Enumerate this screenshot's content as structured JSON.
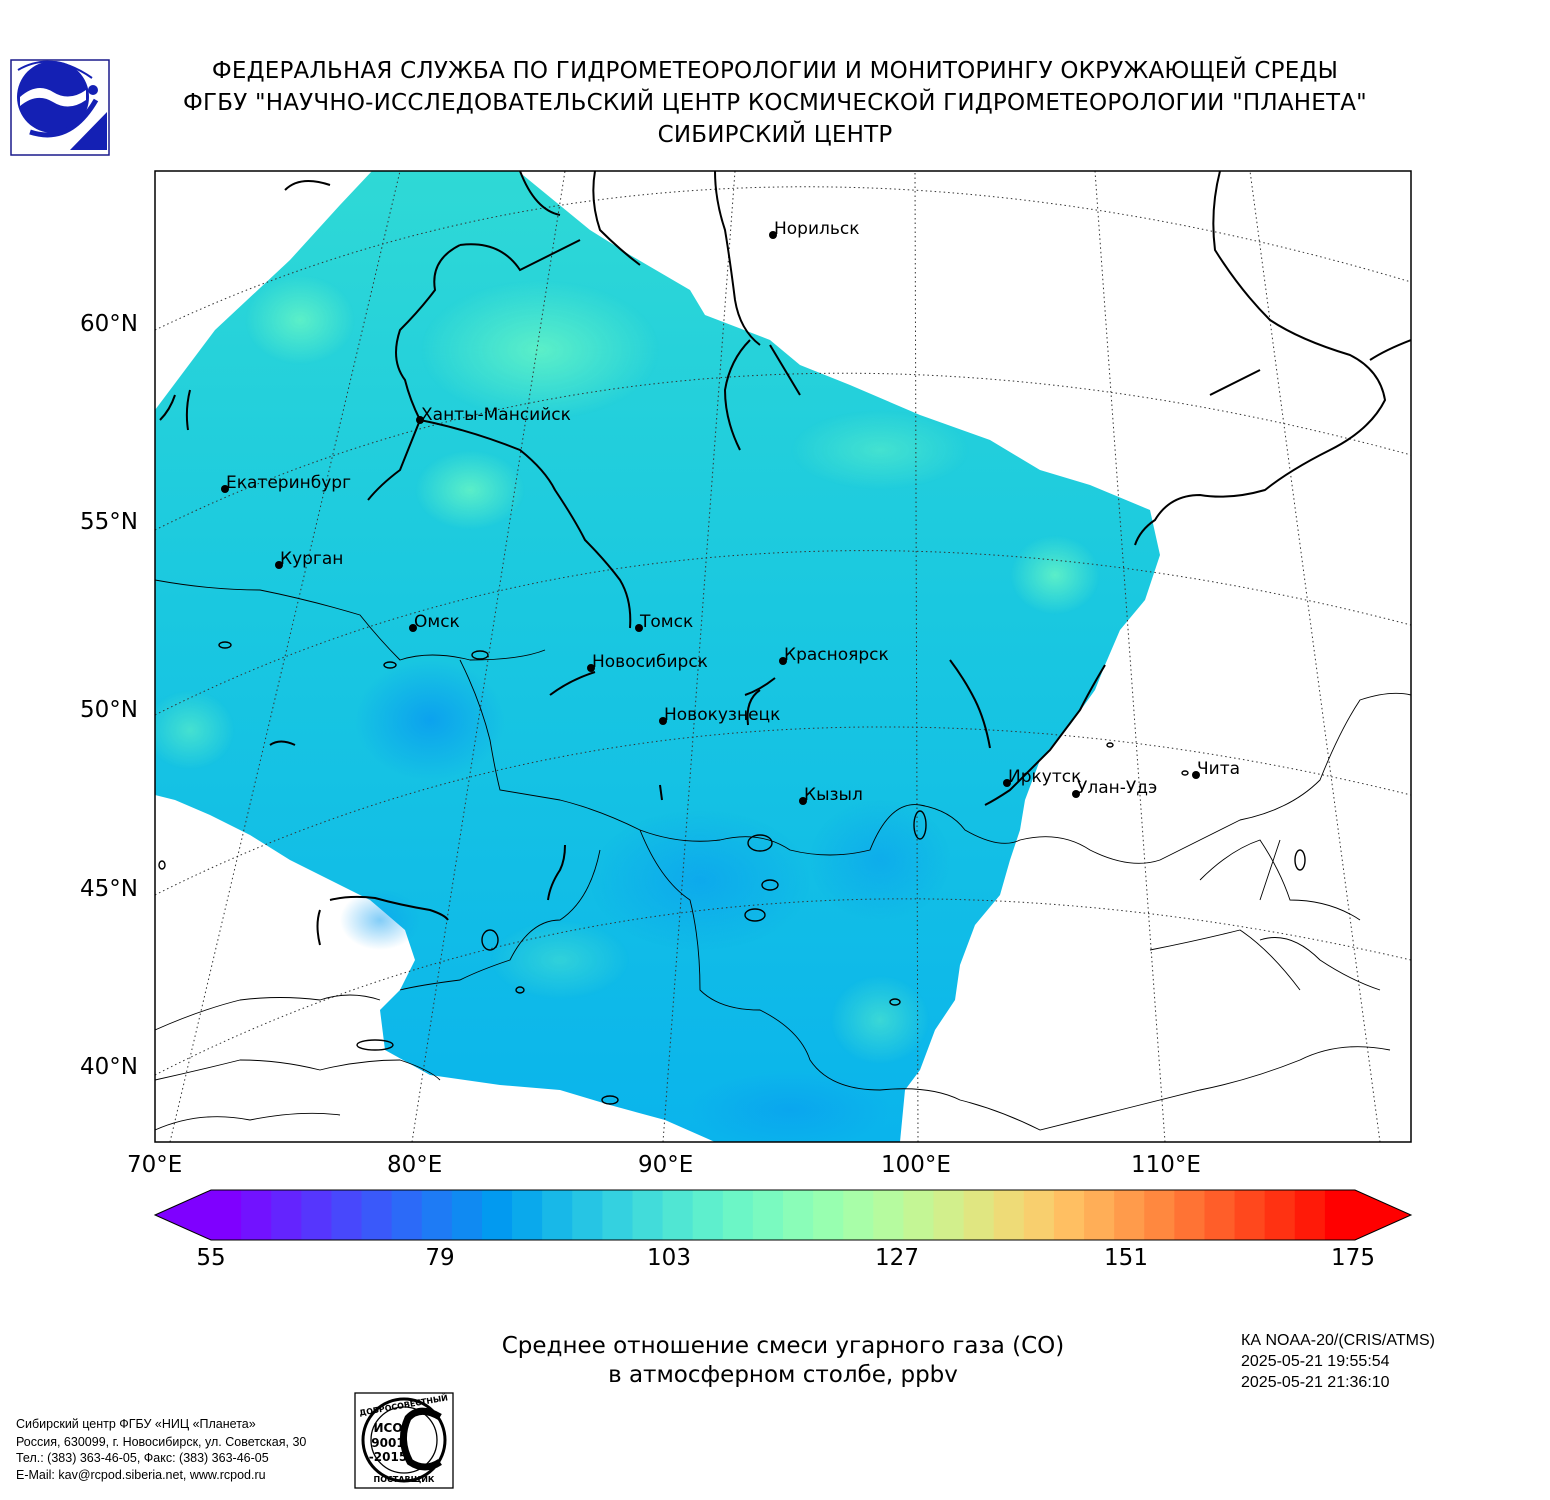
{
  "header": {
    "line1": "ФЕДЕРАЛЬНАЯ СЛУЖБА ПО ГИДРОМЕТЕОРОЛОГИИ И МОНИТОРИНГУ ОКРУЖАЮЩЕЙ СРЕДЫ",
    "line2": "ФГБУ \"НАУЧНО-ИССЛЕДОВАТЕЛЬСКИЙ ЦЕНТР КОСМИЧЕСКОЙ ГИДРОМЕТЕОРОЛОГИИ \"ПЛАНЕТА\"",
    "line3": "СИБИРСКИЙ ЦЕНТР"
  },
  "map": {
    "lat_labels": [
      "60°N",
      "55°N",
      "50°N",
      "45°N",
      "40°N"
    ],
    "lon_labels": [
      "70°E",
      "80°E",
      "90°E",
      "100°E",
      "110°E"
    ],
    "cities": [
      {
        "name": "Норильск"
      },
      {
        "name": "Ханты-Мансийск"
      },
      {
        "name": "Екатеринбург"
      },
      {
        "name": "Курган"
      },
      {
        "name": "Омск"
      },
      {
        "name": "Томск"
      },
      {
        "name": "Новосибирск"
      },
      {
        "name": "Красноярск"
      },
      {
        "name": "Новокузнецк"
      },
      {
        "name": "Иркутск"
      },
      {
        "name": "Улан-Удэ"
      },
      {
        "name": "Чита"
      },
      {
        "name": "Кызыл"
      }
    ],
    "field_colors": {
      "low": "#0ab4ec",
      "mid": "#22d6dc",
      "high": "#5cf0c4"
    }
  },
  "colorbar": {
    "ticks": [
      "55",
      "79",
      "103",
      "127",
      "151",
      "175"
    ],
    "colors": [
      "#7f00ff",
      "#7212ff",
      "#6424fe",
      "#5636fd",
      "#4848fc",
      "#3a59fa",
      "#2c6af8",
      "#1e7bf5",
      "#108af2",
      "#029af0",
      "#0aa9ec",
      "#18b8e8",
      "#26c5e4",
      "#34d1e0",
      "#42dcda",
      "#50e6d3",
      "#5eefcd",
      "#6cf6c6",
      "#7afac0",
      "#8afdb8",
      "#98ffb0",
      "#a8fea8",
      "#b6fb9f",
      "#c4f695",
      "#d2ef8c",
      "#e0e681",
      "#eedb77",
      "#f8cf6e",
      "#ffbf62",
      "#ffae57",
      "#ff9b4b",
      "#ff883f",
      "#ff7334",
      "#ff5e29",
      "#ff481d",
      "#ff3212",
      "#ff1a08",
      "#ff0000"
    ]
  },
  "caption": {
    "line1": "Среднее отношение смеси угарного газа (CO)",
    "line2": "в атмосферном столбе, ppbv"
  },
  "meta": {
    "satellite": "КА NOAA-20/(CRIS/ATMS)",
    "time_start": "2025-05-21 19:55:54",
    "time_end": "2025-05-21 21:36:10"
  },
  "footer": {
    "org": "Сибирский центр ФГБУ «НИЦ «Планета»",
    "address": "Россия, 630099, г. Новосибирск, ул. Советская, 30",
    "phones": "Тел.: (383) 363-46-05, Факс: (383) 363-46-05",
    "email": "E-Mail: kav@rcpod.siberia.net, www.rcpod.ru",
    "cert_top": "ДОБРОСОВЕСТНЫЙ",
    "cert_iso": "ИСО",
    "cert_num": "9001",
    "cert_year": "-2015",
    "cert_bottom": "ПОСТАВЩИК"
  }
}
